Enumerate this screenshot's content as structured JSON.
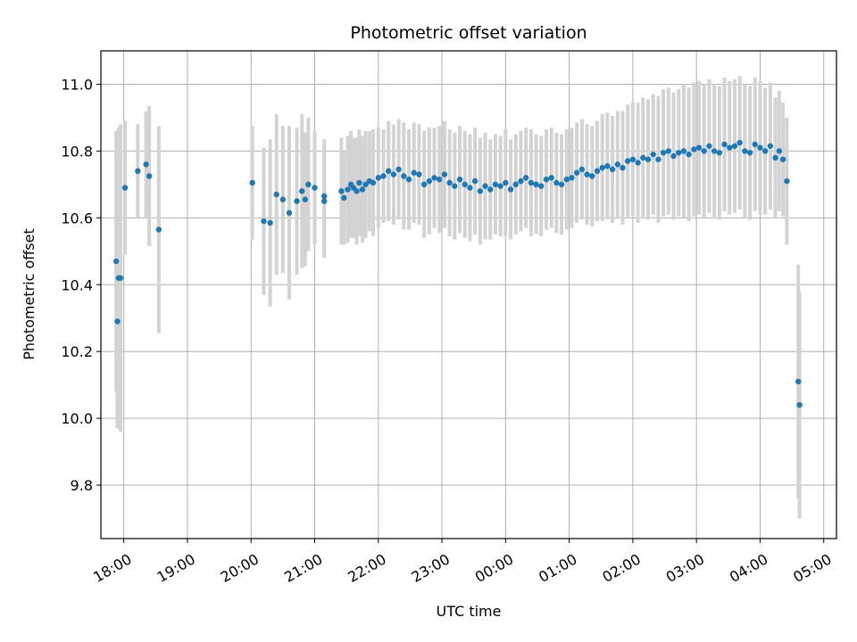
{
  "chart_data": {
    "type": "scatter",
    "title": "Photometric offset variation",
    "xlabel": "UTC time",
    "ylabel": "Photometric offset",
    "xlim": [
      17.64,
      29.2
    ],
    "ylim": [
      9.64,
      11.1
    ],
    "grid": true,
    "x_ticks": [
      18,
      19,
      20,
      21,
      22,
      23,
      24,
      25,
      26,
      27,
      28,
      29
    ],
    "x_tick_labels": [
      "18:00",
      "19:00",
      "20:00",
      "21:00",
      "22:00",
      "23:00",
      "00:00",
      "01:00",
      "02:00",
      "03:00",
      "04:00",
      "05:00"
    ],
    "y_ticks": [
      9.8,
      10.0,
      10.2,
      10.4,
      10.6,
      10.8,
      11.0
    ],
    "y_tick_labels": [
      "9.8",
      "10.0",
      "10.2",
      "10.4",
      "10.6",
      "10.8",
      "11.0"
    ],
    "colors": {
      "point": "#1f77b4",
      "errorbar": "#d3d3d3",
      "grid": "#b0b0b0"
    },
    "series": [
      {
        "name": "Photometric offset",
        "x": [
          17.88,
          17.9,
          17.92,
          17.95,
          18.02,
          18.22,
          18.35,
          18.4,
          18.55,
          20.02,
          20.2,
          20.3,
          20.4,
          20.5,
          20.6,
          20.72,
          20.8,
          20.85,
          20.9,
          21.0,
          21.15,
          21.15,
          21.42,
          21.46,
          21.52,
          21.57,
          21.61,
          21.66,
          21.7,
          21.75,
          21.8,
          21.86,
          21.92,
          22.0,
          22.08,
          22.16,
          22.24,
          22.32,
          22.4,
          22.48,
          22.56,
          22.64,
          22.72,
          22.8,
          22.88,
          22.96,
          23.04,
          23.12,
          23.2,
          23.28,
          23.36,
          23.44,
          23.52,
          23.6,
          23.68,
          23.76,
          23.84,
          23.92,
          24.0,
          24.08,
          24.16,
          24.24,
          24.32,
          24.4,
          24.48,
          24.56,
          24.64,
          24.72,
          24.8,
          24.88,
          24.96,
          25.04,
          25.12,
          25.2,
          25.28,
          25.36,
          25.44,
          25.52,
          25.6,
          25.68,
          25.76,
          25.84,
          25.92,
          26.0,
          26.08,
          26.16,
          26.24,
          26.32,
          26.4,
          26.48,
          26.56,
          26.64,
          26.72,
          26.8,
          26.88,
          26.96,
          27.04,
          27.12,
          27.2,
          27.28,
          27.36,
          27.44,
          27.52,
          27.6,
          27.68,
          27.76,
          27.84,
          27.92,
          28.0,
          28.08,
          28.16,
          28.24,
          28.3,
          28.36,
          28.42,
          28.6,
          28.62
        ],
        "y": [
          10.47,
          10.29,
          10.42,
          10.42,
          10.69,
          10.74,
          10.76,
          10.725,
          10.565,
          10.705,
          10.59,
          10.585,
          10.67,
          10.655,
          10.615,
          10.65,
          10.68,
          10.655,
          10.7,
          10.69,
          10.665,
          10.65,
          10.68,
          10.66,
          10.685,
          10.7,
          10.69,
          10.68,
          10.705,
          10.685,
          10.7,
          10.71,
          10.705,
          10.72,
          10.725,
          10.74,
          10.73,
          10.745,
          10.725,
          10.715,
          10.735,
          10.73,
          10.7,
          10.71,
          10.72,
          10.715,
          10.73,
          10.705,
          10.695,
          10.715,
          10.7,
          10.69,
          10.71,
          10.68,
          10.695,
          10.685,
          10.7,
          10.695,
          10.705,
          10.685,
          10.7,
          10.71,
          10.72,
          10.705,
          10.7,
          10.695,
          10.715,
          10.72,
          10.705,
          10.7,
          10.715,
          10.72,
          10.735,
          10.745,
          10.73,
          10.725,
          10.74,
          10.75,
          10.755,
          10.745,
          10.76,
          10.75,
          10.77,
          10.775,
          10.765,
          10.78,
          10.775,
          10.79,
          10.775,
          10.795,
          10.8,
          10.785,
          10.795,
          10.8,
          10.79,
          10.805,
          10.81,
          10.8,
          10.815,
          10.8,
          10.795,
          10.82,
          10.81,
          10.815,
          10.825,
          10.8,
          10.795,
          10.82,
          10.81,
          10.8,
          10.815,
          10.78,
          10.8,
          10.775,
          10.71,
          10.11,
          10.04
        ],
        "err": [
          0.39,
          0.32,
          0.45,
          0.46,
          0.2,
          0.14,
          0.16,
          0.21,
          0.31,
          0.17,
          0.22,
          0.25,
          0.24,
          0.22,
          0.26,
          0.22,
          0.23,
          0.2,
          0.2,
          0.17,
          0.17,
          0.17,
          0.16,
          0.14,
          0.16,
          0.16,
          0.15,
          0.16,
          0.16,
          0.16,
          0.16,
          0.15,
          0.16,
          0.15,
          0.14,
          0.15,
          0.15,
          0.15,
          0.16,
          0.15,
          0.15,
          0.15,
          0.16,
          0.16,
          0.15,
          0.16,
          0.16,
          0.16,
          0.16,
          0.16,
          0.16,
          0.16,
          0.16,
          0.16,
          0.16,
          0.15,
          0.15,
          0.15,
          0.16,
          0.15,
          0.15,
          0.15,
          0.15,
          0.16,
          0.15,
          0.15,
          0.15,
          0.15,
          0.15,
          0.15,
          0.15,
          0.15,
          0.15,
          0.15,
          0.15,
          0.15,
          0.15,
          0.16,
          0.16,
          0.16,
          0.16,
          0.17,
          0.17,
          0.17,
          0.18,
          0.18,
          0.18,
          0.18,
          0.19,
          0.19,
          0.19,
          0.19,
          0.19,
          0.2,
          0.2,
          0.2,
          0.2,
          0.2,
          0.2,
          0.2,
          0.2,
          0.2,
          0.2,
          0.2,
          0.2,
          0.2,
          0.2,
          0.2,
          0.2,
          0.19,
          0.19,
          0.18,
          0.18,
          0.17,
          0.19,
          0.35,
          0.34
        ]
      }
    ]
  }
}
